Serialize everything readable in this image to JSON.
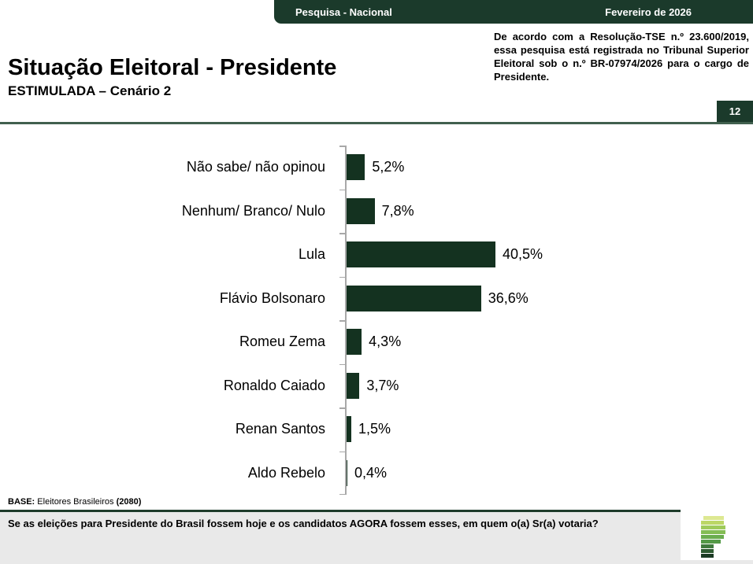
{
  "header": {
    "left": "Pesquisa - Nacional",
    "right": "Fevereiro de 2026"
  },
  "registration_note": "De acordo com a Resolução-TSE n.º 23.600/2019, essa pesquisa está registrada no Tribunal Superior Eleitoral sob o n.º BR-07974/2026 para o cargo de Presidente.",
  "title": "Situação Eleitoral - Presidente",
  "subtitle": "ESTIMULADA – Cenário 2",
  "page_number": "12",
  "chart_data": {
    "type": "bar",
    "orientation": "horizontal",
    "title": "Situação Eleitoral - Presidente — ESTIMULADA – Cenário 2",
    "categories": [
      "Não sabe/ não opinou",
      "Nenhum/ Branco/ Nulo",
      "Lula",
      "Flávio Bolsonaro",
      "Romeu Zema",
      "Ronaldo Caiado",
      "Renan Santos",
      "Aldo Rebelo"
    ],
    "values": [
      5.2,
      7.8,
      40.5,
      36.6,
      4.3,
      3.7,
      1.5,
      0.4
    ],
    "value_labels": [
      "5,2%",
      "7,8%",
      "40,5%",
      "36,6%",
      "4,3%",
      "3,7%",
      "1,5%",
      "0,4%"
    ],
    "bar_color": "#143220",
    "axis_color": "#a8a8a8",
    "xlim": [
      0,
      45
    ],
    "grid": false,
    "legend": false
  },
  "base_note": {
    "prefix": "BASE:",
    "text": " Eleitores Brasileiros ",
    "count": "(2080)"
  },
  "question": "Se as eleições para Presidente do Brasil fossem hoje e os candidatos AGORA fossem esses, em quem o(a) Sr(a) votaria?",
  "colors": {
    "header_green": "#1b3a2b",
    "bar_green": "#143220",
    "divider_green": "#41604e",
    "bottom_bar_gray": "#e9e9e9"
  },
  "logo": {
    "name": "institute-logo",
    "bars": [
      {
        "width": 26,
        "color": "#dde892",
        "offset": 3
      },
      {
        "width": 29,
        "color": "#bcd766",
        "offset": 0
      },
      {
        "width": 31,
        "color": "#9fcb5b",
        "offset": 0
      },
      {
        "width": 31,
        "color": "#84bd55",
        "offset": 0
      },
      {
        "width": 29,
        "color": "#6aad4f",
        "offset": 0
      },
      {
        "width": 25,
        "color": "#549a47",
        "offset": 0
      },
      {
        "width": 16,
        "color": "#3f7a3d",
        "offset": 0
      },
      {
        "width": 16,
        "color": "#2d5a31",
        "offset": 0
      },
      {
        "width": 16,
        "color": "#1b3a24",
        "offset": 0
      }
    ]
  }
}
